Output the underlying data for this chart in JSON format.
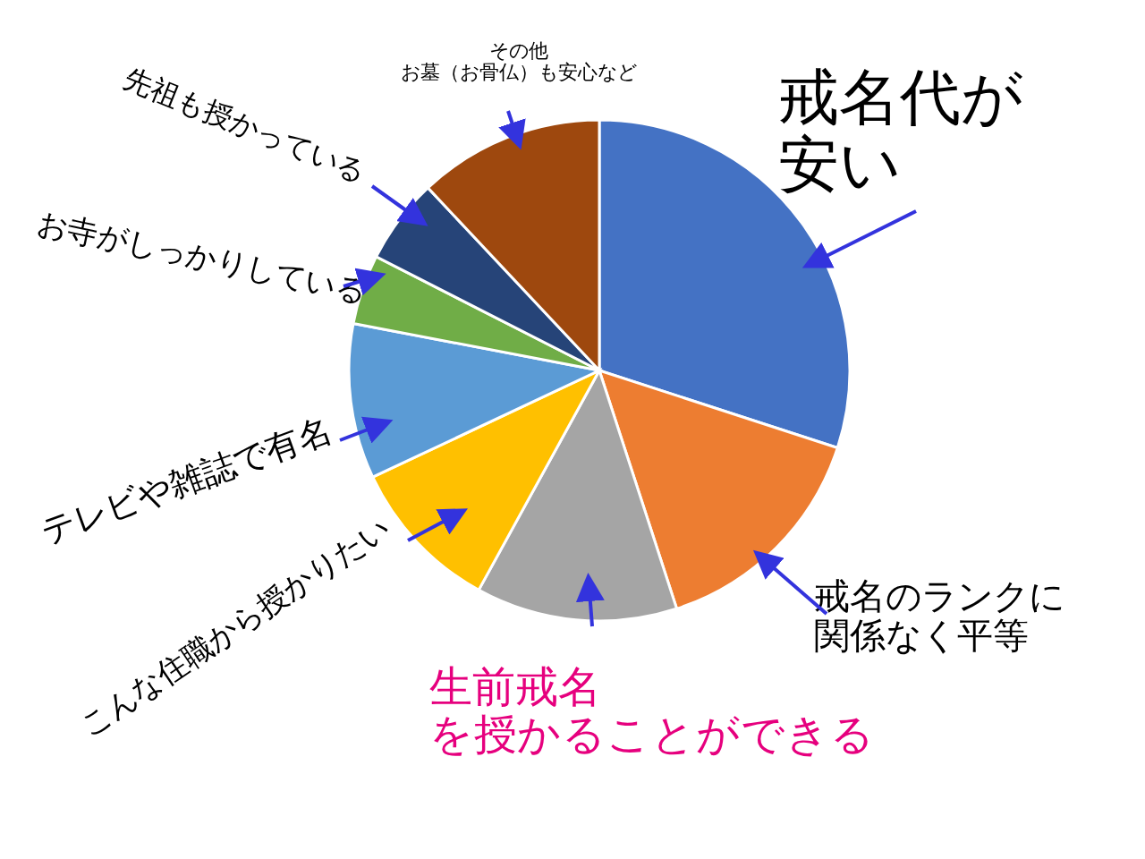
{
  "chart_data": {
    "type": "pie",
    "categories": [
      "戒名代が安い",
      "戒名のランクに関係なく平等",
      "生前戒名を授かることができる",
      "こんな住職から授かりたい",
      "テレビや雑誌で有名",
      "お寺がしっかりしている",
      "先祖も授かっている",
      "その他お墓（お骨仏）も安心など"
    ],
    "values": [
      30,
      15,
      13,
      10,
      10,
      4.5,
      5.5,
      12
    ],
    "colors": [
      "#4472c4",
      "#ed7d31",
      "#a5a5a5",
      "#ffc000",
      "#5b9bd5",
      "#70ad47",
      "#264478",
      "#9e480e"
    ],
    "legend": false
  }
}
